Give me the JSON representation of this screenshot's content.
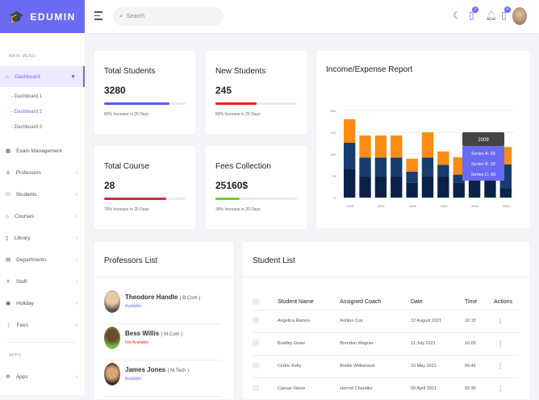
{
  "brand": {
    "name": "EDUMIN",
    "color": "#6a6af3"
  },
  "header": {
    "search_placeholder": "Search",
    "notifications_count": "4",
    "messages_count": "3"
  },
  "sidebar": {
    "main_label": "MAIN MENU",
    "dashboard": {
      "label": "Dashboard",
      "sub": [
        "Dashboard 1",
        "Dashboard 2",
        "Dashboard 3"
      ],
      "active_sub": 1
    },
    "items": [
      {
        "label": "Exam Management",
        "icon": "calendar-icon"
      },
      {
        "label": "Professors",
        "icon": "user-icon"
      },
      {
        "label": "Students",
        "icon": "users-icon"
      },
      {
        "label": "Courses",
        "icon": "book-icon"
      },
      {
        "label": "Library",
        "icon": "library-icon"
      },
      {
        "label": "Departments",
        "icon": "building-icon"
      },
      {
        "label": "Staff",
        "icon": "staff-icon"
      },
      {
        "label": "Holiday",
        "icon": "holiday-icon"
      },
      {
        "label": "Fees",
        "icon": "fees-icon"
      }
    ],
    "apps_label": "APPS",
    "apps": {
      "label": "Apps"
    }
  },
  "stats": [
    {
      "title": "Total Students",
      "value": "3280",
      "note": "80% Increase in 20 Days",
      "progress": 80,
      "color": "#5b5bf0"
    },
    {
      "title": "New Students",
      "value": "245",
      "note": "50% Increase in 25 Days",
      "progress": 50,
      "color": "#ff1a1a"
    },
    {
      "title": "Total Course",
      "value": "28",
      "note": "76% Increase in 20 Days",
      "progress": 76,
      "color": "#d02c3a"
    },
    {
      "title": "Fees Collection",
      "value": "25160$",
      "note": "30% Increase in 30 Days",
      "progress": 30,
      "color": "#6ad12a"
    }
  ],
  "chart_data": {
    "type": "bar",
    "stacked": true,
    "title": "Income/Expense Report",
    "categories": [
      "2006",
      "",
      "2007",
      "",
      "2008",
      "",
      "2009",
      "",
      "2009",
      "",
      "2009"
    ],
    "ylim": [
      0,
      300
    ],
    "yticks": [
      0,
      75,
      150,
      225,
      300
    ],
    "grid": true,
    "series": [
      {
        "name": "Series A",
        "values": [
          99,
          74,
          74,
          74,
          51,
          74,
          74,
          51,
          60,
          60,
          32
        ],
        "color": "#0a2148"
      },
      {
        "name": "Series B",
        "values": [
          90,
          64,
          64,
          64,
          38,
          64,
          39,
          28,
          20,
          20,
          82
        ],
        "color": "#173c6e"
      },
      {
        "name": "Series C",
        "values": [
          81,
          76,
          76,
          76,
          45,
          87,
          46,
          60,
          60,
          60,
          60
        ],
        "color": "#fb8c13"
      }
    ],
    "tooltip": {
      "title": "2009",
      "lines": [
        "Series A: 60",
        "Series B: 20",
        "Series C: 60"
      ]
    }
  },
  "professors": {
    "title": "Professors List",
    "items": [
      {
        "name": "Theodore Handle",
        "degree": "( B.Com )",
        "status": "Available",
        "status_color": "#6a6af3"
      },
      {
        "name": "Bess Willis",
        "degree": "( M.Com )",
        "status": "Not Available",
        "status_color": "#ff2a2a"
      },
      {
        "name": "James Jones",
        "degree": "( M.Tech )",
        "status": "Available",
        "status_color": "#6a6af3"
      }
    ]
  },
  "students": {
    "title": "Student List",
    "columns": [
      "Student Name",
      "Assigned Coach",
      "Date",
      "Time",
      "Actions"
    ],
    "rows": [
      [
        "Angelica Ramos",
        "Ashton Cox",
        "12 August 2021",
        "10:15"
      ],
      [
        "Bradley Greer",
        "Brenden Wagner",
        "11 July 2021",
        "10:00"
      ],
      [
        "Cedric Kelly",
        "Brielle Williamson",
        "10 May 2021",
        "09:45"
      ],
      [
        "Caesar Vance",
        "Herrod Chandler",
        "09 April 2021",
        "09:30"
      ]
    ]
  }
}
